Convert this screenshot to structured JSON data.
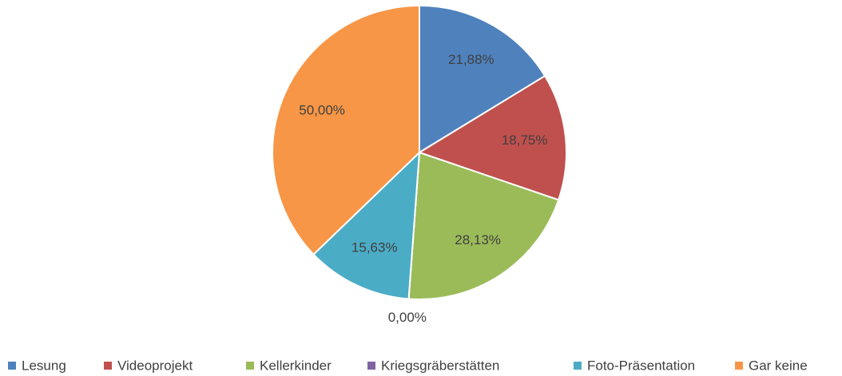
{
  "chart_data": {
    "type": "pie",
    "categories": [
      "Lesung",
      "Videoprojekt",
      "Kellerkinder",
      "Kriegsgräberstätten",
      "Foto-Präsentation",
      "Gar keine"
    ],
    "values": [
      21.88,
      18.75,
      28.13,
      0,
      15.63,
      50
    ],
    "value_labels": [
      "21,88%",
      "18,75%",
      "28,13%",
      "0,00%",
      "15,63%",
      "50,00%"
    ],
    "colors": [
      "#4f81bd",
      "#c0504d",
      "#9bbb59",
      "#8064a2",
      "#4bacc6",
      "#f79646"
    ],
    "legend": "bottom"
  }
}
